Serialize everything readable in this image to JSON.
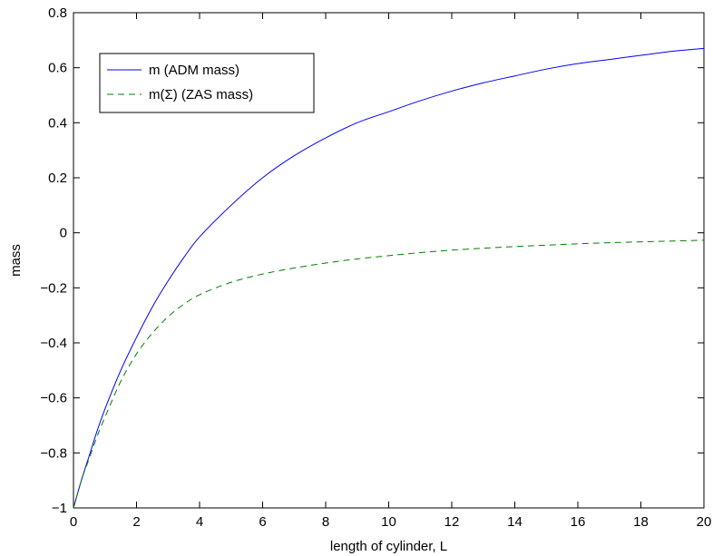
{
  "chart_data": {
    "type": "line",
    "xlabel": "length of cylinder, L",
    "ylabel": "mass",
    "xlim": [
      0,
      20
    ],
    "ylim": [
      -1,
      0.8
    ],
    "xticks": [
      0,
      2,
      4,
      6,
      8,
      10,
      12,
      14,
      16,
      18,
      20
    ],
    "yticks": [
      -1,
      -0.8,
      -0.6,
      -0.4,
      -0.2,
      0,
      0.2,
      0.4,
      0.6,
      0.8
    ],
    "xtick_labels": [
      "0",
      "2",
      "4",
      "6",
      "8",
      "10",
      "12",
      "14",
      "16",
      "18",
      "20"
    ],
    "ytick_labels": [
      "−1",
      "−0.8",
      "−0.6",
      "−0.4",
      "−0.2",
      "0",
      "0.2",
      "0.4",
      "0.6",
      "0.8"
    ],
    "grid": false,
    "legend_position": "top-left",
    "series": [
      {
        "name": "m (ADM mass)",
        "color": "#0000ff",
        "style": "solid",
        "x": [
          0,
          0.25,
          0.5,
          0.75,
          1,
          1.5,
          2,
          2.5,
          3,
          3.5,
          4,
          5,
          6,
          7,
          8,
          9,
          10,
          11,
          12,
          13,
          14,
          15,
          16,
          17,
          18,
          19,
          20
        ],
        "y": [
          -1,
          -0.9,
          -0.81,
          -0.72,
          -0.64,
          -0.5,
          -0.38,
          -0.27,
          -0.175,
          -0.09,
          -0.015,
          0.1,
          0.2,
          0.28,
          0.345,
          0.4,
          0.44,
          0.48,
          0.515,
          0.545,
          0.57,
          0.595,
          0.615,
          0.63,
          0.645,
          0.66,
          0.67
        ]
      },
      {
        "name": "m(Σ) (ZAS mass)",
        "color": "#007f00",
        "style": "dashed",
        "x": [
          0,
          0.25,
          0.5,
          0.75,
          1,
          1.5,
          2,
          2.5,
          3,
          3.5,
          4,
          5,
          6,
          7,
          8,
          9,
          10,
          11,
          12,
          13,
          14,
          15,
          16,
          17,
          18,
          19,
          20
        ],
        "y": [
          -1,
          -0.9,
          -0.82,
          -0.74,
          -0.67,
          -0.54,
          -0.44,
          -0.365,
          -0.305,
          -0.26,
          -0.225,
          -0.18,
          -0.15,
          -0.128,
          -0.11,
          -0.095,
          -0.083,
          -0.072,
          -0.063,
          -0.056,
          -0.05,
          -0.045,
          -0.04,
          -0.036,
          -0.033,
          -0.03,
          -0.027
        ]
      }
    ]
  }
}
